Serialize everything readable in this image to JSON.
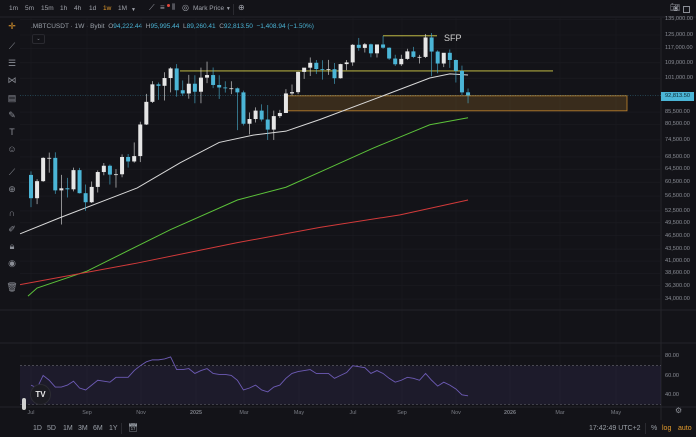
{
  "toolbar": {
    "intervals": [
      "1m",
      "5m",
      "15m",
      "1h",
      "4h",
      "1d",
      "1w",
      "1M"
    ],
    "active_interval": "1w",
    "price_source": "Mark Price",
    "icons": [
      "indicators-icon",
      "alert-icon",
      "compare-icon",
      "replay-icon",
      "add-icon",
      "camera-icon",
      "fullscreen-icon"
    ]
  },
  "legend": {
    "symbol": ".MBTCUSDT · 1W · Bybit",
    "o_label": "O",
    "o": "94,222.44",
    "h_label": "H",
    "h": "95,995.44",
    "l_label": "L",
    "l": "89,260.41",
    "c_label": "C",
    "c": "92,813.50",
    "change": "−1,408.94 (−1.50%)"
  },
  "annotation": {
    "sfp_label": "SFP"
  },
  "price_axis": {
    "labels": [
      "135,000.00",
      "125,000.00",
      "117,000.00",
      "109,000.00",
      "101,000.00",
      "85,500.00",
      "80,500.00",
      "74,500.00",
      "68,500.00",
      "64,500.00",
      "60,500.00",
      "56,500.00",
      "52,500.00",
      "49,500.00",
      "46,500.00",
      "43,500.00",
      "41,000.00",
      "38,600.00",
      "36,300.00",
      "34,000.00"
    ],
    "current_price": "92,813.50"
  },
  "rsi_axis": {
    "labels": [
      "80.00",
      "60.00",
      "40.00"
    ]
  },
  "time_axis": {
    "labels": [
      "Jul",
      "Sep",
      "Nov",
      "2025",
      "Mar",
      "May",
      "Jul",
      "Sep",
      "Nov",
      "2026",
      "Mar",
      "May"
    ]
  },
  "bottom_bar": {
    "ranges": [
      "1D",
      "5D",
      "1M",
      "3M",
      "6M",
      "1Y"
    ],
    "clock": "17:42:49 UTC+2",
    "percent": "%",
    "log": "log",
    "auto": "auto"
  },
  "colors": {
    "background": "#131318",
    "up": "#e6e6e6",
    "down": "#4bb5d6",
    "ma_white": "#d9d9d9",
    "ma_green": "#5cc23a",
    "ma_red": "#d23a3a",
    "level_line": "#d8d24a",
    "zone": "#c4872e",
    "rsi": "#6d5bb5",
    "accent": "#e39b2d"
  },
  "chart_data": {
    "type": "candlestick",
    "symbol": ".MBTCUSDT",
    "timeframe": "1W",
    "scale": "log",
    "first_week": "2024-07-01",
    "candles_ohlc_thousands": [
      [
        62.7,
        63.8,
        53.5,
        55.9
      ],
      [
        55.9,
        61.4,
        54.3,
        60.8
      ],
      [
        60.8,
        68.4,
        60.6,
        68.2
      ],
      [
        68.2,
        70.0,
        63.4,
        68.2
      ],
      [
        68.2,
        70.1,
        57.1,
        58.1
      ],
      [
        58.1,
        62.7,
        49.1,
        58.7
      ],
      [
        58.7,
        61.8,
        56.1,
        58.4
      ],
      [
        58.4,
        65.0,
        57.8,
        64.2
      ],
      [
        64.2,
        64.9,
        57.2,
        57.3
      ],
      [
        57.3,
        59.8,
        52.5,
        54.8
      ],
      [
        54.8,
        60.7,
        54.6,
        59.1
      ],
      [
        59.1,
        64.1,
        57.5,
        63.6
      ],
      [
        63.6,
        66.5,
        62.6,
        65.6
      ],
      [
        65.6,
        66.0,
        59.8,
        62.8
      ],
      [
        62.8,
        64.5,
        58.9,
        62.9
      ],
      [
        62.9,
        69.4,
        62.0,
        68.5
      ],
      [
        68.5,
        69.5,
        65.0,
        67.0
      ],
      [
        67.0,
        73.6,
        66.6,
        68.8
      ],
      [
        68.8,
        81.5,
        66.8,
        80.4
      ],
      [
        80.4,
        93.5,
        80.2,
        89.9
      ],
      [
        89.9,
        99.6,
        89.4,
        98.0
      ],
      [
        98.0,
        98.9,
        90.8,
        97.3
      ],
      [
        97.3,
        104.0,
        90.5,
        101.1
      ],
      [
        101.1,
        106.6,
        94.2,
        106.0
      ],
      [
        106.0,
        108.3,
        92.2,
        95.2
      ],
      [
        95.2,
        99.9,
        92.5,
        93.7
      ],
      [
        93.7,
        102.7,
        91.3,
        98.3
      ],
      [
        98.3,
        102.5,
        89.3,
        94.5
      ],
      [
        94.5,
        106.4,
        89.3,
        101.3
      ],
      [
        101.3,
        109.6,
        98.6,
        102.6
      ],
      [
        102.6,
        106.5,
        96.2,
        97.7
      ],
      [
        97.7,
        102.5,
        91.2,
        96.5
      ],
      [
        96.5,
        99.5,
        94.1,
        96.1
      ],
      [
        96.1,
        99.5,
        93.4,
        96.1
      ],
      [
        96.1,
        96.5,
        78.2,
        94.2
      ],
      [
        94.2,
        95.0,
        80.0,
        80.7
      ],
      [
        80.7,
        85.3,
        76.6,
        82.6
      ],
      [
        82.6,
        87.5,
        81.2,
        86.1
      ],
      [
        86.1,
        88.8,
        81.6,
        82.4
      ],
      [
        82.4,
        88.5,
        74.5,
        78.4
      ],
      [
        78.4,
        86.1,
        74.5,
        83.8
      ],
      [
        83.8,
        86.4,
        83.0,
        85.1
      ],
      [
        85.1,
        95.7,
        85.1,
        93.7
      ],
      [
        93.7,
        97.9,
        92.8,
        94.3
      ],
      [
        94.3,
        104.3,
        93.4,
        104.2
      ],
      [
        104.2,
        105.8,
        100.7,
        106.4
      ],
      [
        106.4,
        111.9,
        102.1,
        109.0
      ],
      [
        109.0,
        110.5,
        103.1,
        105.7
      ],
      [
        105.7,
        110.4,
        100.3,
        105.6
      ],
      [
        105.6,
        110.6,
        102.7,
        105.6
      ],
      [
        105.6,
        108.9,
        98.2,
        101.0
      ],
      [
        101.0,
        108.5,
        100.8,
        108.3
      ],
      [
        108.3,
        110.5,
        105.1,
        109.2
      ],
      [
        109.2,
        119.5,
        107.4,
        119.1
      ],
      [
        119.1,
        123.2,
        115.7,
        117.3
      ],
      [
        117.3,
        120.2,
        114.7,
        119.4
      ],
      [
        119.4,
        119.8,
        112.0,
        114.2
      ],
      [
        114.2,
        119.3,
        111.9,
        119.3
      ],
      [
        119.3,
        124.5,
        116.8,
        117.4
      ],
      [
        117.4,
        117.6,
        110.6,
        111.3
      ],
      [
        111.3,
        113.4,
        107.3,
        108.2
      ],
      [
        108.2,
        113.4,
        107.3,
        111.1
      ],
      [
        111.1,
        116.8,
        110.6,
        115.3
      ],
      [
        115.3,
        117.9,
        111.5,
        112.2
      ],
      [
        112.2,
        113.3,
        108.6,
        112.2
      ],
      [
        112.2,
        125.6,
        111.6,
        123.5
      ],
      [
        123.5,
        126.2,
        102.0,
        115.2
      ],
      [
        115.2,
        115.9,
        103.5,
        108.6
      ],
      [
        108.6,
        114.0,
        106.7,
        114.5
      ],
      [
        114.5,
        116.4,
        106.3,
        110.5
      ],
      [
        110.5,
        110.8,
        98.9,
        104.7
      ],
      [
        104.7,
        107.5,
        93.0,
        94.2
      ],
      [
        94.222,
        95.995,
        89.26,
        92.8135
      ]
    ],
    "moving_averages_thousands": [
      {
        "color": "white",
        "points": [
          [
            -1.8,
            46.9
          ],
          [
            4.8,
            50.8
          ],
          [
            17.5,
            58.8
          ],
          [
            24.6,
            66.6
          ],
          [
            31,
            73.6
          ],
          [
            36.6,
            76.3
          ],
          [
            42,
            77.8
          ],
          [
            47.6,
            82.4
          ],
          [
            57.5,
            92.1
          ],
          [
            65.7,
            101.1
          ],
          [
            69,
            103.2
          ],
          [
            72,
            102.6
          ]
        ]
      },
      {
        "color": "green",
        "points": [
          [
            -0.5,
            34.5
          ],
          [
            1,
            35.9
          ],
          [
            9.2,
            39.0
          ],
          [
            23,
            47.9
          ],
          [
            34,
            55.4
          ],
          [
            42,
            59.0
          ],
          [
            47.6,
            63.6
          ],
          [
            56.3,
            71.5
          ],
          [
            65.7,
            80.3
          ],
          [
            72,
            83.1
          ]
        ]
      },
      {
        "color": "red",
        "points": [
          [
            -1.8,
            36.5
          ],
          [
            17.5,
            40.6
          ],
          [
            34,
            44.9
          ],
          [
            47.6,
            48.4
          ],
          [
            60.8,
            51.5
          ],
          [
            72,
            55.4
          ]
        ]
      }
    ],
    "horizontal_level": 104.7,
    "sfp_level": 124.5,
    "zone": [
      86.0,
      92.6
    ],
    "rsi": [
      50,
      47,
      60,
      55,
      48,
      48,
      50,
      54,
      47,
      45,
      50,
      55,
      54,
      53,
      58,
      58,
      58,
      65,
      70,
      74,
      76,
      76,
      77,
      79,
      66,
      66,
      67,
      62,
      65,
      67,
      62,
      61,
      61,
      60,
      55,
      45,
      47,
      50,
      45,
      43,
      48,
      50,
      57,
      62,
      64,
      65,
      66,
      62,
      62,
      62,
      57,
      60,
      63,
      70,
      69,
      68,
      62,
      65,
      62,
      57,
      53,
      55,
      58,
      57,
      55,
      62,
      55,
      49,
      53,
      50,
      46,
      40,
      39
    ],
    "rsi_bands": [
      30,
      70
    ]
  }
}
